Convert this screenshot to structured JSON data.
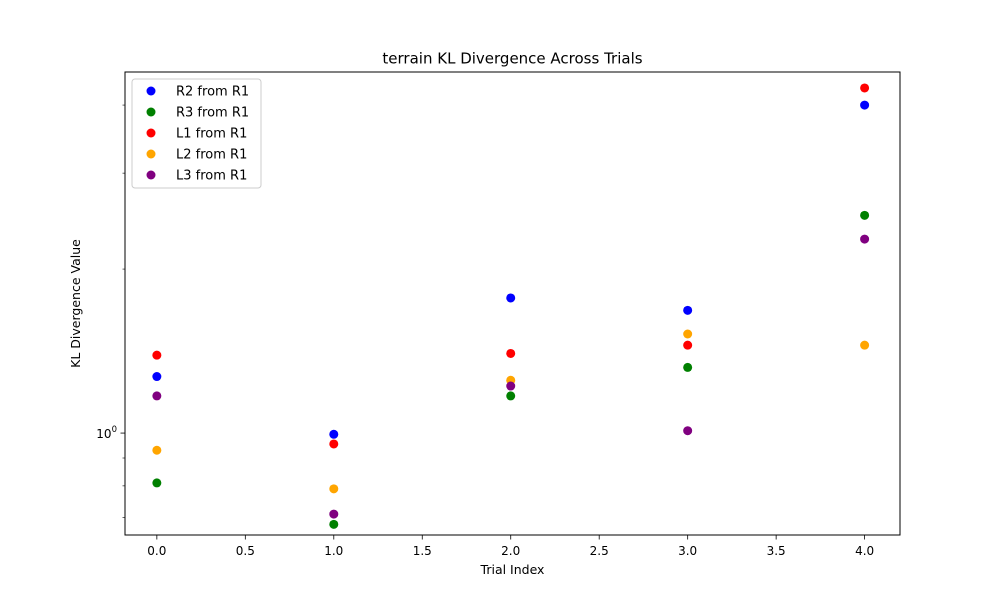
{
  "chart_data": {
    "type": "scatter",
    "title": "terrain KL Divergence Across Trials",
    "xlabel": "Trial Index",
    "ylabel": "KL Divergence Value",
    "xlim": [
      -0.18,
      4.2
    ],
    "ylim": [
      0.65,
      4.6
    ],
    "yscale": "log",
    "grid": false,
    "legend_position": "top-left",
    "x_ticks": [
      0.0,
      0.5,
      1.0,
      1.5,
      2.0,
      2.5,
      3.0,
      3.5,
      4.0
    ],
    "x_tick_labels": [
      "0.0",
      "0.5",
      "1.0",
      "1.5",
      "2.0",
      "2.5",
      "3.0",
      "3.5",
      "4.0"
    ],
    "y_major_ticks": [
      1.0
    ],
    "y_major_tick_labels": [
      "10^0"
    ],
    "y_minor_ticks": [
      0.7,
      0.8,
      0.9,
      2,
      3,
      4
    ],
    "x": [
      0,
      1,
      2,
      3,
      4
    ],
    "series": [
      {
        "name": "R2 from R1",
        "color": "#0000ff",
        "values": [
          1.27,
          0.995,
          1.77,
          1.68,
          4.0
        ]
      },
      {
        "name": "R3 from R1",
        "color": "#008000",
        "values": [
          0.81,
          0.68,
          1.17,
          1.32,
          2.51
        ]
      },
      {
        "name": "L1 from R1",
        "color": "#ff0000",
        "values": [
          1.39,
          0.955,
          1.4,
          1.45,
          4.3
        ]
      },
      {
        "name": "L2 from R1",
        "color": "#ffa500",
        "values": [
          0.93,
          0.79,
          1.25,
          1.52,
          1.45
        ]
      },
      {
        "name": "L3 from R1",
        "color": "#800080",
        "values": [
          1.17,
          0.71,
          1.22,
          1.01,
          2.27
        ]
      }
    ]
  }
}
